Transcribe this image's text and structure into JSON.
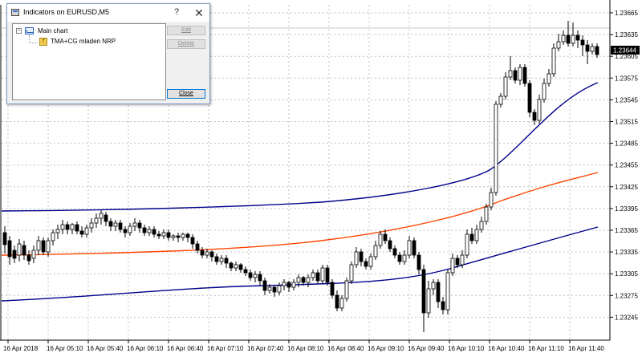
{
  "dialog": {
    "title": "Indicators on EURUSD,M5",
    "help_label": "?",
    "close_label": "✕",
    "tree": {
      "root_label": "Main chart",
      "indicator_label": "TMA+CG mladen NRP"
    },
    "buttons": {
      "edit": "Edit",
      "delete": "Delete",
      "close": "Close"
    }
  },
  "chart": {
    "symbol": "EURUSD",
    "timeframe": "M5",
    "current_price": "1.23644",
    "price_axis": [
      "1.23665",
      "1.23635",
      "1.23605",
      "1.23575",
      "1.23545",
      "1.23515",
      "1.23485",
      "1.23455",
      "1.23425",
      "1.23395",
      "1.23365",
      "1.23335",
      "1.23305",
      "1.23275",
      "1.23245"
    ],
    "time_axis": [
      "16 Apr 2018",
      "16 Apr 05:10",
      "16 Apr 05:40",
      "16 Apr 06:10",
      "16 Apr 06:40",
      "16 Apr 07:10",
      "16 Apr 07:40",
      "16 Apr 08:10",
      "16 Apr 08:40",
      "16 Apr 09:10",
      "16 Apr 09:40",
      "16 Apr 10:10",
      "16 Apr 10:40",
      "16 Apr 11:10",
      "16 Apr 11:40"
    ],
    "colors": {
      "grid": "#c0c0c0",
      "bull_body": "#ffffff",
      "bear_body": "#000000",
      "band": "#00008b",
      "center_line": "#ff4500",
      "current_price_bg": "#000000",
      "current_price_line": "#a0a0a0"
    }
  }
}
